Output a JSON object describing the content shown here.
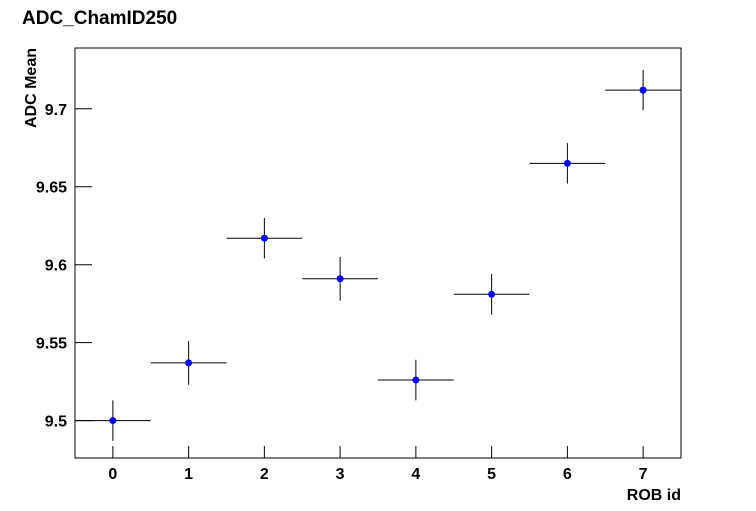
{
  "chart_data": {
    "type": "scatter",
    "title": "ADC_ChamID250",
    "x_label": "ROB id",
    "y_label": "ADC Mean",
    "x": [
      0,
      1,
      2,
      3,
      4,
      5,
      6,
      7
    ],
    "xerr": [
      0.5,
      0.5,
      0.5,
      0.5,
      0.5,
      0.5,
      0.5,
      0.5
    ],
    "series": [
      {
        "color": "#0000ff",
        "values": [
          9.5,
          9.537,
          9.617,
          9.591,
          9.526,
          9.581,
          9.665,
          9.712
        ],
        "yerr": [
          0.013,
          0.014,
          0.013,
          0.014,
          0.013,
          0.013,
          0.013,
          0.013
        ]
      }
    ],
    "xlim": [
      -0.5,
      7.5
    ],
    "ylim": [
      9.476,
      9.739
    ],
    "xticks": [
      0,
      1,
      2,
      3,
      4,
      5,
      6,
      7
    ],
    "yticks": [
      9.5,
      9.55,
      9.6,
      9.65,
      9.7
    ]
  }
}
